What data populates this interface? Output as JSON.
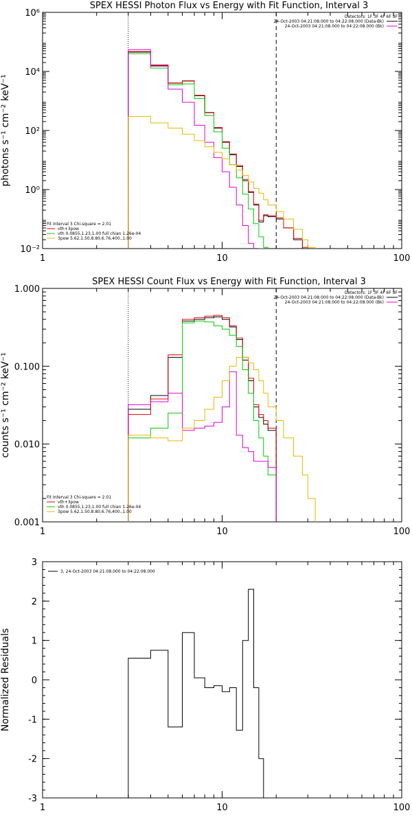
{
  "chart_data": [
    {
      "type": "line",
      "title": "SPEX HESSI Photon Flux vs Energy with Fit Function, Interval 3",
      "xlabel": "",
      "ylabel": "photons s⁻¹ cm⁻² keV⁻¹",
      "x_scale": "log",
      "y_scale": "log",
      "xlim": [
        1,
        100
      ],
      "ylim": [
        0.01,
        1000000
      ],
      "x_tick_labels": [
        "1",
        "10",
        "100"
      ],
      "y_tick_labels": [
        "10⁻²",
        "10⁰",
        "10²",
        "10⁴",
        "10⁶"
      ],
      "vlines": [
        {
          "x": 3,
          "style": "dotted"
        },
        {
          "x": 20,
          "style": "dashed"
        }
      ],
      "legend_right": [
        "Detectors: 1F 3F 4F 6F 9F",
        "24-Oct-2003 04:21:08.000 to 04:22:08.000 (Data-Bk)",
        "24-Oct-2003 04:21:08.000 to 04:22:08.000 (Bk)"
      ],
      "legend_left": [
        "Fit Interval 3   Chi-square = 2.01",
        "vth+3pow",
        "vth 0.0855,1.23,1.00  full chian 1.26e-04",
        "3pow  5.62,1.50,8.80,6.76,400.,1.00"
      ],
      "series": [
        {
          "color": "#000000",
          "edges": [
            3,
            4,
            5,
            6,
            7,
            8,
            9,
            10,
            11,
            12,
            13,
            14,
            15,
            16,
            17,
            18,
            20,
            22,
            25,
            28,
            30,
            33
          ],
          "values": [
            45000,
            16000,
            4000,
            4800,
            1500,
            400,
            120,
            40,
            15,
            6,
            2,
            0.8,
            0.3,
            0.08,
            0.13,
            0.12,
            0.1,
            0.05,
            0.02,
            0.01,
            0.008
          ]
        },
        {
          "color": "#dd0000",
          "edges": [
            3,
            4,
            5,
            6,
            7,
            8,
            9,
            10,
            11,
            12,
            13,
            14,
            15,
            16,
            17,
            18,
            20,
            22,
            25,
            28,
            30,
            33
          ],
          "values": [
            47000,
            16500,
            4100,
            4700,
            1550,
            410,
            125,
            42,
            16,
            6.5,
            2.2,
            0.85,
            0.32,
            0.09,
            0.14,
            0.13,
            0.11,
            0.05,
            0.022,
            0.011,
            0.009
          ]
        },
        {
          "color": "#00cc00",
          "edges": [
            3,
            4,
            5,
            6,
            7,
            8,
            9,
            10,
            11,
            12,
            13,
            14,
            15,
            16,
            17,
            18,
            20
          ],
          "values": [
            40000,
            13000,
            3500,
            3800,
            1200,
            320,
            90,
            25,
            7,
            2.5,
            0.7,
            0.22,
            0.07,
            0.025,
            0.011,
            0.008
          ]
        },
        {
          "color": "#dd00dd",
          "edges": [
            3,
            4,
            5,
            6,
            7,
            8,
            9,
            10,
            11,
            12,
            13,
            14,
            15,
            16,
            17,
            18,
            20
          ],
          "values": [
            55000,
            15000,
            2500,
            900,
            150,
            40,
            12,
            4,
            1.2,
            0.3,
            0.06,
            0.015,
            0.005,
            0.01,
            0.008,
            0.006
          ]
        },
        {
          "color": "#e6b800",
          "edges": [
            3,
            4,
            5,
            6,
            7,
            8,
            9,
            10,
            11,
            12,
            13,
            14,
            15,
            16,
            17,
            18,
            20,
            22,
            25,
            28,
            30,
            33
          ],
          "values": [
            300,
            180,
            120,
            75,
            45,
            28,
            18,
            11,
            7,
            4.5,
            3,
            1.8,
            1.1,
            0.75,
            0.45,
            0.3,
            0.18,
            0.1,
            0.045,
            0.02,
            0.011
          ]
        }
      ]
    },
    {
      "type": "line",
      "title": "SPEX HESSI Count Flux vs Energy with Fit Function, Interval 3",
      "xlabel": "",
      "ylabel": "counts s⁻¹ cm⁻² keV⁻¹",
      "x_scale": "log",
      "y_scale": "log",
      "xlim": [
        1,
        100
      ],
      "ylim": [
        0.001,
        1.0
      ],
      "x_tick_labels": [
        "1",
        "10",
        "100"
      ],
      "y_tick_labels": [
        "0.001",
        "0.010",
        "0.100",
        "1.000"
      ],
      "vlines": [
        {
          "x": 3,
          "style": "dotted"
        },
        {
          "x": 20,
          "style": "dashed"
        }
      ],
      "legend_right": [
        "Detectors: 1F 3F 4F 6F 9F",
        "24-Oct-2003 04:21:08.000 to 04:22:08.000 (Data-Bk)",
        "24-Oct-2003 04:21:08.000 to 04:22:08.000 (Bk)"
      ],
      "legend_left": [
        "Fit Interval 3   Chi-square = 2.01",
        "vth+3pow",
        "vth 0.0855,1.23,1.00  full chian 1.26e-04",
        "3pow  5.62,1.50,8.80,6.76,400.,1.00"
      ],
      "series": [
        {
          "color": "#000000",
          "edges": [
            3,
            4,
            5,
            6,
            7,
            8,
            9,
            10,
            11,
            12,
            13,
            14,
            15,
            16,
            17,
            18,
            20
          ],
          "values": [
            0.028,
            0.042,
            0.13,
            0.38,
            0.4,
            0.42,
            0.43,
            0.4,
            0.32,
            0.22,
            0.12,
            0.065,
            0.03,
            0.022,
            0.018,
            0.015
          ]
        },
        {
          "color": "#dd0000",
          "edges": [
            3,
            4,
            5,
            6,
            7,
            8,
            9,
            10,
            11,
            12,
            13,
            14,
            15,
            16,
            17,
            18,
            20
          ],
          "values": [
            0.024,
            0.038,
            0.14,
            0.4,
            0.42,
            0.44,
            0.45,
            0.42,
            0.33,
            0.23,
            0.13,
            0.07,
            0.032,
            0.024,
            0.02,
            0.016
          ]
        },
        {
          "color": "#00cc00",
          "edges": [
            3,
            4,
            5,
            6,
            7,
            8,
            9,
            10,
            11,
            12,
            13,
            14,
            15,
            16,
            17,
            18,
            20
          ],
          "values": [
            0.012,
            0.016,
            0.025,
            0.36,
            0.38,
            0.37,
            0.33,
            0.3,
            0.25,
            0.18,
            0.09,
            0.045,
            0.02,
            0.012,
            0.007,
            0.004
          ]
        },
        {
          "color": "#dd00dd",
          "edges": [
            3,
            4,
            5,
            6,
            7,
            8,
            9,
            10,
            11,
            12,
            13,
            14,
            15,
            16,
            17,
            18,
            20
          ],
          "values": [
            0.032,
            0.035,
            0.045,
            0.015,
            0.016,
            0.017,
            0.019,
            0.03,
            0.085,
            0.013,
            0.009,
            0.008,
            0.006,
            0.006,
            0.006,
            0.005
          ]
        },
        {
          "color": "#e6b800",
          "edges": [
            3,
            4,
            5,
            6,
            7,
            8,
            9,
            10,
            11,
            12,
            13,
            14,
            15,
            16,
            17,
            18,
            20,
            22,
            25,
            28,
            30,
            33
          ],
          "values": [
            0.013,
            0.012,
            0.011,
            0.016,
            0.02,
            0.028,
            0.04,
            0.065,
            0.1,
            0.13,
            0.13,
            0.11,
            0.09,
            0.065,
            0.045,
            0.03,
            0.02,
            0.012,
            0.007,
            0.004,
            0.002
          ]
        }
      ]
    },
    {
      "type": "line",
      "title": "",
      "xlabel": "",
      "ylabel": "Normalized Residuals",
      "x_scale": "log",
      "y_scale": "linear",
      "xlim": [
        1,
        100
      ],
      "ylim": [
        -3,
        3
      ],
      "x_tick_labels": [
        "1",
        "10",
        "100"
      ],
      "y_tick_labels": [
        "-3",
        "-2",
        "-1",
        "0",
        "1",
        "2",
        "3"
      ],
      "legend_left": [
        "3, 24-Oct-2003 04:21:08.000 to 04:22:08.000"
      ],
      "series": [
        {
          "color": "#000000",
          "edges": [
            3,
            4,
            5,
            6,
            7,
            8,
            9,
            10,
            11,
            12,
            13,
            14,
            15,
            16,
            17,
            18,
            20
          ],
          "values": [
            0.55,
            0.75,
            -1.2,
            1.2,
            0.05,
            -0.2,
            -0.15,
            -0.3,
            -0.2,
            -1.28,
            1.0,
            2.3,
            -0.2,
            -2.0,
            -3.2,
            -3.2
          ]
        }
      ]
    }
  ]
}
